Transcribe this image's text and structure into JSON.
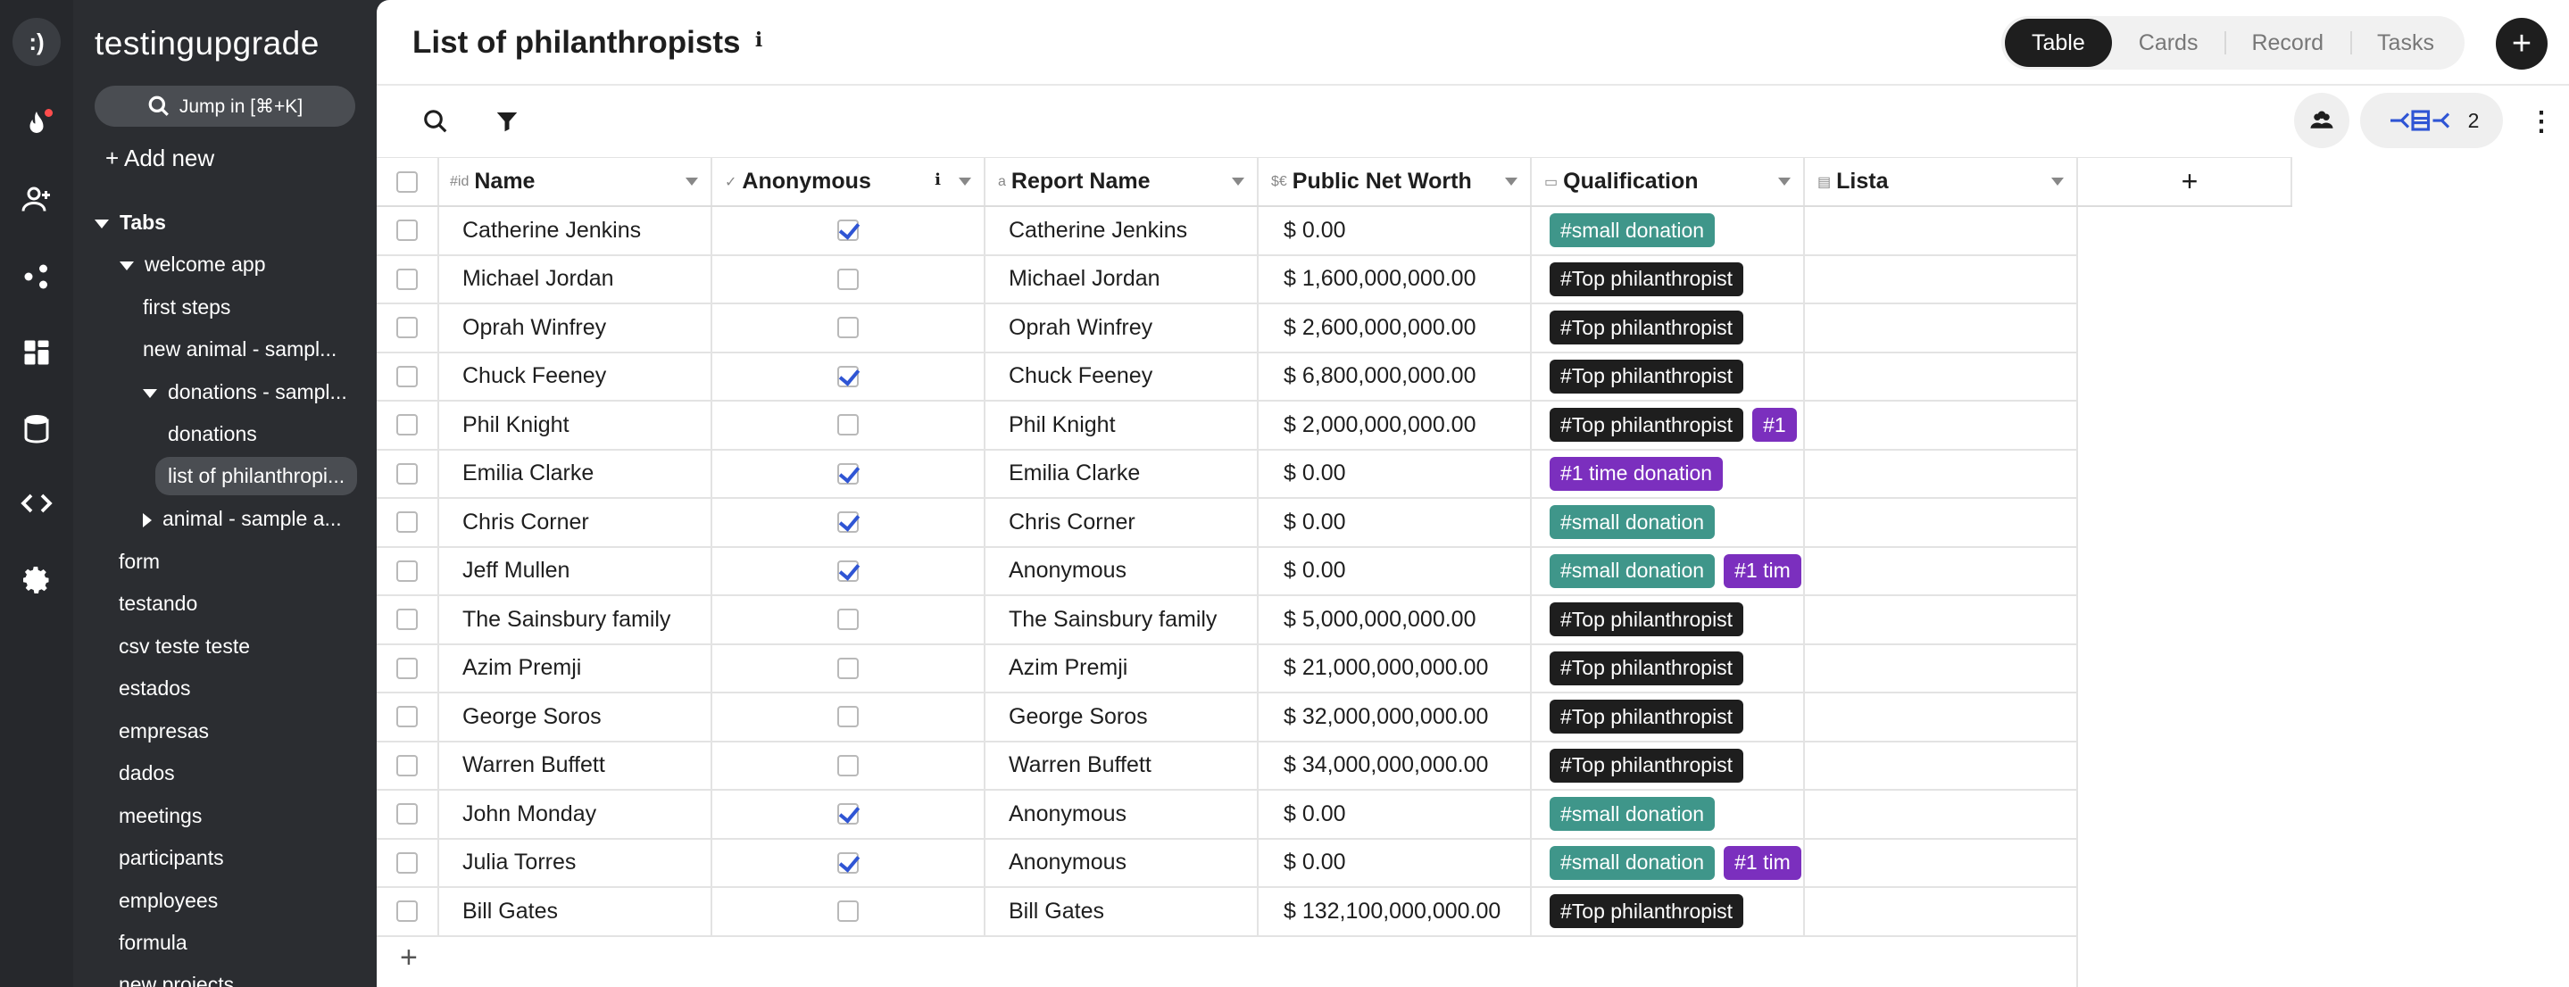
{
  "workspace": {
    "logo": ":)",
    "title": "testingupgrade"
  },
  "sidebar": {
    "jump_label": "Jump in [⌘+K]",
    "add_new": "+ Add new",
    "tabs_label": "Tabs",
    "items": [
      {
        "label": "welcome app"
      },
      {
        "label": "first steps"
      },
      {
        "label": "new animal - sampl..."
      },
      {
        "label": "donations - sampl..."
      },
      {
        "label": "donations"
      },
      {
        "label": "list of philanthropi..."
      },
      {
        "label": "animal - sample a..."
      },
      {
        "label": "form"
      },
      {
        "label": "testando"
      },
      {
        "label": "csv teste teste"
      },
      {
        "label": "estados"
      },
      {
        "label": "empresas"
      },
      {
        "label": "dados"
      },
      {
        "label": "meetings"
      },
      {
        "label": "participants"
      },
      {
        "label": "employees"
      },
      {
        "label": "formula"
      },
      {
        "label": "new projects"
      }
    ]
  },
  "header": {
    "title": "List of philanthropists",
    "tabs": [
      "Table",
      "Cards",
      "Record",
      "Tasks"
    ],
    "active_tab": "Table"
  },
  "toolbar": {
    "flow_count": "2"
  },
  "table": {
    "columns": [
      {
        "icon": "#id",
        "label": "Name"
      },
      {
        "icon": "✓",
        "label": "Anonymous"
      },
      {
        "icon": "a",
        "label": "Report Name"
      },
      {
        "icon": "$€",
        "label": "Public Net Worth"
      },
      {
        "icon": "▭",
        "label": "Qualification"
      },
      {
        "icon": "▤",
        "label": "Lista"
      }
    ],
    "add_column": "+",
    "add_row": "+",
    "rows": [
      {
        "name": "Catherine Jenkins",
        "anonymous": true,
        "report": "Catherine Jenkins",
        "worth": "$ 0.00",
        "tags": [
          "#small donation"
        ]
      },
      {
        "name": "Michael Jordan",
        "anonymous": false,
        "report": "Michael Jordan",
        "worth": "$ 1,600,000,000.00",
        "tags": [
          "#Top philanthropist"
        ]
      },
      {
        "name": "Oprah Winfrey",
        "anonymous": false,
        "report": "Oprah Winfrey",
        "worth": "$ 2,600,000,000.00",
        "tags": [
          "#Top philanthropist"
        ]
      },
      {
        "name": "Chuck Feeney",
        "anonymous": true,
        "report": "Chuck Feeney",
        "worth": "$ 6,800,000,000.00",
        "tags": [
          "#Top philanthropist"
        ]
      },
      {
        "name": "Phil Knight",
        "anonymous": false,
        "report": "Phil Knight",
        "worth": "$ 2,000,000,000.00",
        "tags": [
          "#Top philanthropist",
          "#1"
        ]
      },
      {
        "name": "Emilia Clarke",
        "anonymous": true,
        "report": "Emilia Clarke",
        "worth": "$ 0.00",
        "tags": [
          "#1 time donation"
        ]
      },
      {
        "name": "Chris Corner",
        "anonymous": true,
        "report": "Chris Corner",
        "worth": "$ 0.00",
        "tags": [
          "#small donation"
        ]
      },
      {
        "name": "Jeff Mullen",
        "anonymous": true,
        "report": "Anonymous",
        "worth": "$ 0.00",
        "tags": [
          "#small donation",
          "#1 tim"
        ]
      },
      {
        "name": "The Sainsbury family",
        "anonymous": false,
        "report": "The Sainsbury family",
        "worth": "$ 5,000,000,000.00",
        "tags": [
          "#Top philanthropist"
        ]
      },
      {
        "name": "Azim Premji",
        "anonymous": false,
        "report": "Azim Premji",
        "worth": "$ 21,000,000,000.00",
        "tags": [
          "#Top philanthropist"
        ]
      },
      {
        "name": "George Soros",
        "anonymous": false,
        "report": "George Soros",
        "worth": "$ 32,000,000,000.00",
        "tags": [
          "#Top philanthropist"
        ]
      },
      {
        "name": "Warren Buffett",
        "anonymous": false,
        "report": "Warren Buffett",
        "worth": "$ 34,000,000,000.00",
        "tags": [
          "#Top philanthropist"
        ]
      },
      {
        "name": "John Monday",
        "anonymous": true,
        "report": "Anonymous",
        "worth": "$ 0.00",
        "tags": [
          "#small donation"
        ]
      },
      {
        "name": "Julia Torres",
        "anonymous": true,
        "report": "Anonymous",
        "worth": "$ 0.00",
        "tags": [
          "#small donation",
          "#1 tim"
        ]
      },
      {
        "name": "Bill Gates",
        "anonymous": false,
        "report": "Bill Gates",
        "worth": "$ 132,100,000,000.00",
        "tags": [
          "#Top philanthropist"
        ]
      }
    ]
  },
  "tag_colors": {
    "#small donation": "#3f968a",
    "#Top philanthropist": "#1e1e1e",
    "#1 time donation": "#7b2fbe",
    "#1": "#7b2fbe",
    "#1 tim": "#7b2fbe"
  },
  "icons": [
    "fire-icon",
    "add-user-icon",
    "share-icon",
    "dashboard-icon",
    "database-icon",
    "code-icon",
    "gear-icon",
    "search-icon",
    "filter-icon",
    "users-icon",
    "flow-icon",
    "kebab-icon",
    "info-icon"
  ]
}
